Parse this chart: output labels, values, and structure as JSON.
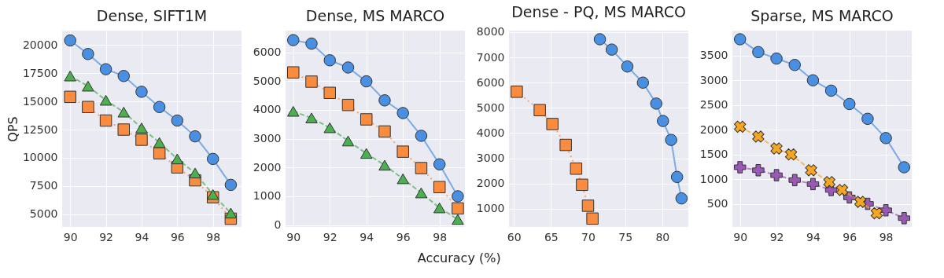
{
  "chart_data": [
    {
      "type": "line",
      "title": "Dense, SIFT1M",
      "ylabel": "QPS",
      "grid": true,
      "x": [
        90,
        91,
        92,
        93,
        94,
        95,
        96,
        97,
        98,
        99
      ],
      "xlim": [
        89.55,
        99.6
      ],
      "xticks": [
        90,
        92,
        94,
        96,
        98
      ],
      "ylim": [
        3870,
        21270
      ],
      "yticks": [
        5000,
        7500,
        10000,
        12500,
        15000,
        17500,
        20000
      ],
      "series": [
        {
          "color": "#4a90e2",
          "marker": "circle",
          "line_style": "solid",
          "values": [
            20400,
            19200,
            17850,
            17250,
            15850,
            14500,
            13300,
            11900,
            9900,
            7600
          ]
        },
        {
          "color": "#f98c3e",
          "marker": "square",
          "line_style": "dotted",
          "values": [
            15400,
            14500,
            13300,
            12500,
            11600,
            10400,
            9150,
            8000,
            6500,
            4600
          ]
        },
        {
          "color": "#4caf50",
          "marker": "triangle",
          "line_style": "dashed",
          "values": [
            17250,
            16350,
            15100,
            14050,
            12650,
            11350,
            9900,
            8650,
            6750,
            5100
          ]
        }
      ]
    },
    {
      "type": "line",
      "title": "Dense, MS MARCO",
      "annotations": [
        "Accuracy (%)"
      ],
      "grid": true,
      "x": [
        90,
        91,
        92,
        93,
        94,
        95,
        96,
        97,
        98,
        99
      ],
      "xlim": [
        89.58,
        99.39
      ],
      "xticks": [
        90,
        92,
        94,
        96,
        98
      ],
      "ylim": [
        -63,
        6750
      ],
      "yticks": [
        0,
        1000,
        2000,
        3000,
        4000,
        5000,
        6000
      ],
      "series": [
        {
          "color": "#4a90e2",
          "marker": "circle",
          "line_style": "solid",
          "values": [
            6420,
            6300,
            5720,
            5470,
            4990,
            4330,
            3890,
            3100,
            2110,
            1000
          ]
        },
        {
          "color": "#f98c3e",
          "marker": "square",
          "line_style": "dotted",
          "values": [
            5300,
            4980,
            4590,
            4170,
            3670,
            3250,
            2550,
            1980,
            1320,
            580
          ]
        },
        {
          "color": "#4caf50",
          "marker": "triangle",
          "line_style": "dashed",
          "values": [
            3950,
            3720,
            3380,
            2920,
            2490,
            2080,
            1610,
            1120,
            600,
            200
          ]
        }
      ]
    },
    {
      "type": "line",
      "title": "Dense - PQ, MS MARCO",
      "grid": true,
      "xlim": [
        59.35,
        83.52
      ],
      "xticks": [
        60,
        65,
        70,
        75,
        80
      ],
      "ylim": [
        278,
        8062
      ],
      "yticks": [
        1000,
        2000,
        3000,
        4000,
        5000,
        6000,
        7000,
        8000
      ],
      "series": [
        {
          "color": "#4a90e2",
          "marker": "circle",
          "line_style": "solid",
          "x": [
            71.6,
            73.2,
            75.3,
            77.4,
            79.2,
            80.1,
            81.2,
            82.0,
            82.6
          ],
          "values": [
            7720,
            7310,
            6640,
            6000,
            5170,
            4480,
            3730,
            2260,
            1410
          ]
        },
        {
          "color": "#f98c3e",
          "marker": "square",
          "line_style": "dotted",
          "x": [
            60.4,
            63.5,
            65.2,
            67.0,
            68.4,
            69.2,
            70.0,
            70.6
          ],
          "values": [
            5640,
            4910,
            4360,
            3530,
            2590,
            1950,
            1120,
            610
          ]
        }
      ]
    },
    {
      "type": "line",
      "title": "Sparse, MS MARCO",
      "grid": true,
      "xlim": [
        89.58,
        99.42
      ],
      "xticks": [
        90,
        92,
        94,
        96,
        98
      ],
      "ylim": [
        32,
        4005
      ],
      "yticks": [
        500,
        1000,
        1500,
        2000,
        2500,
        3000,
        3500
      ],
      "series": [
        {
          "color": "#4a90e2",
          "marker": "circle",
          "line_style": "solid",
          "x": [
            90,
            91,
            92,
            93,
            94,
            95,
            96,
            97,
            98,
            99
          ],
          "values": [
            3830,
            3570,
            3440,
            3310,
            3000,
            2790,
            2520,
            2220,
            1830,
            1240
          ]
        },
        {
          "color": "#9b59b6",
          "marker": "cross",
          "line_style": "dashed",
          "x": [
            90,
            91,
            92,
            93,
            94,
            95,
            96,
            97,
            98,
            99
          ],
          "values": [
            1240,
            1180,
            1080,
            980,
            900,
            780,
            630,
            500,
            370,
            210
          ]
        },
        {
          "color": "#f5a623",
          "marker": "x",
          "line_style": "dashed",
          "x": [
            90,
            91,
            92,
            92.8,
            93.9,
            94.9,
            95.6,
            96.6,
            97.5
          ],
          "values": [
            2060,
            1860,
            1620,
            1500,
            1180,
            940,
            780,
            540,
            310
          ]
        }
      ]
    }
  ]
}
